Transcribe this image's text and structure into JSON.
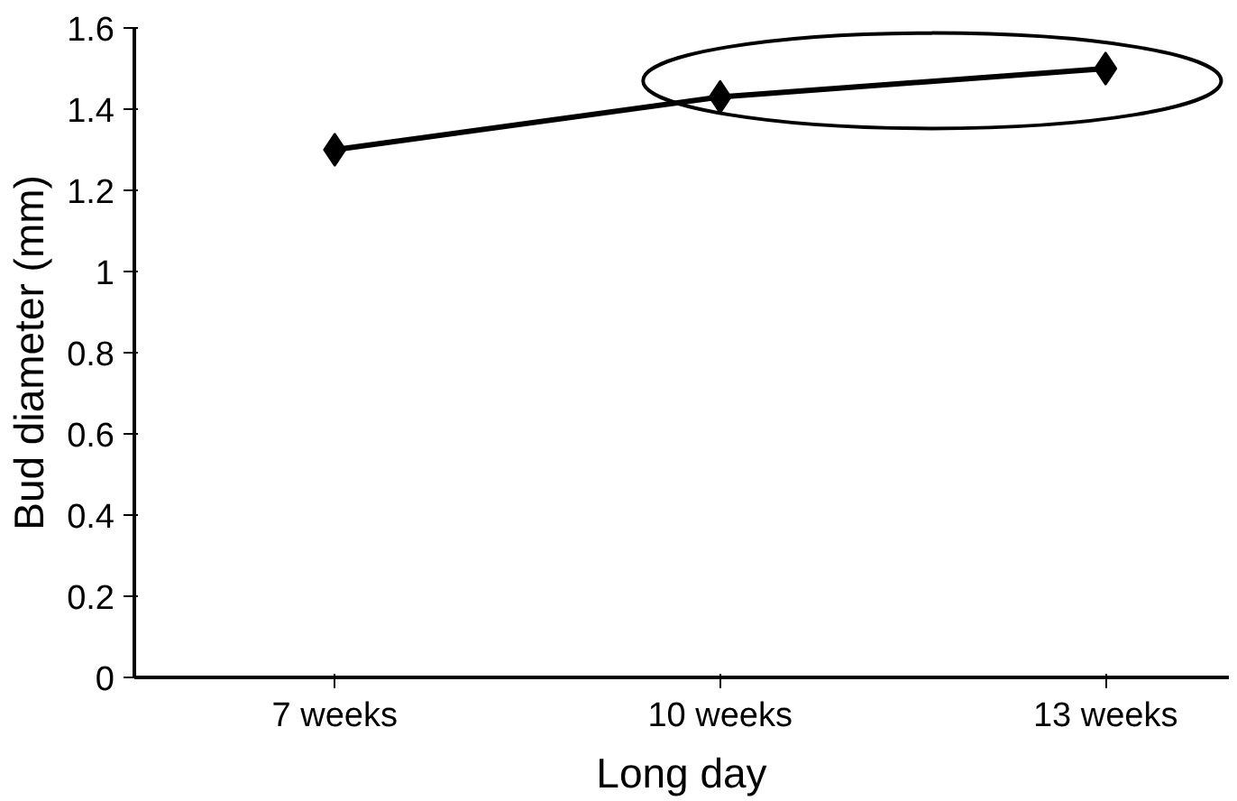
{
  "chart_data": {
    "type": "line",
    "xlabel": "Long day",
    "ylabel": "Bud diameter (mm)",
    "categories": [
      "7 weeks",
      "10 weeks",
      "13 weeks"
    ],
    "series": [
      {
        "color": "#000000",
        "values": [
          1.3,
          1.43,
          1.5
        ]
      }
    ],
    "ylim": [
      0,
      1.6
    ],
    "yticks": [
      0,
      0.2,
      0.4,
      0.6,
      0.8,
      1,
      1.2,
      1.4,
      1.6
    ],
    "marker": "diamond",
    "line_style": "solid",
    "grid": false
  }
}
